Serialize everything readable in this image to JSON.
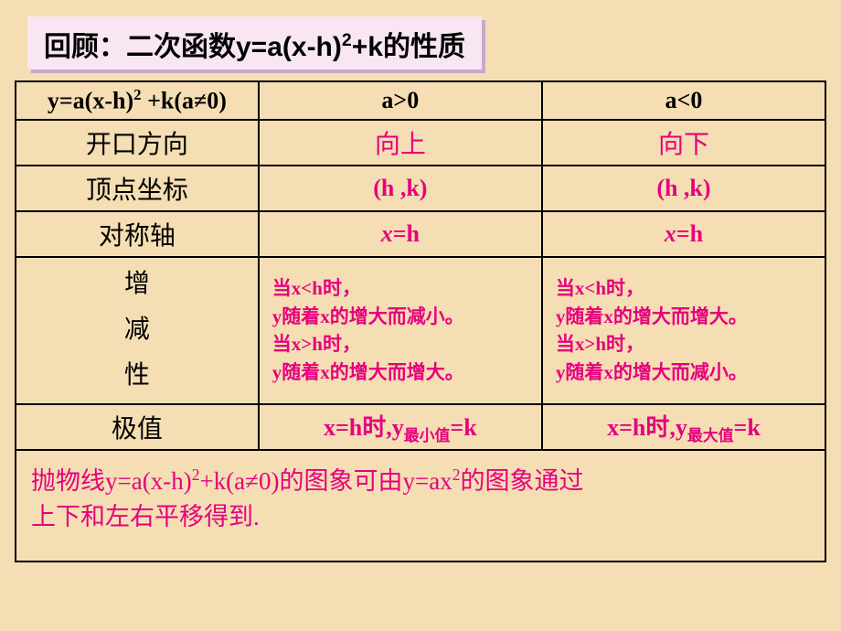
{
  "colors": {
    "slide_bg": "#f5deb3",
    "title_bg": "#f8e6f2",
    "title_shadow": "#c8a8c8",
    "accent": "#e6007e",
    "text": "#000000",
    "border": "#000000"
  },
  "title": {
    "prefix": "回顾：二次函数y=a(x-h)",
    "sup": "2",
    "suffix": "+k的性质"
  },
  "table": {
    "header": {
      "formula_pre": "y=a(x-h)",
      "formula_sup": "2",
      "formula_mid": " +k(a≠0)",
      "col_a_pos": "a>0",
      "col_a_neg": "a<0"
    },
    "rows": {
      "opening": {
        "label": "开口方向",
        "pos": "向上",
        "neg": "向下"
      },
      "vertex": {
        "label": "顶点坐标",
        "pos": "(h ,k)",
        "neg": "(h ,k)"
      },
      "axis": {
        "label": "对称轴"
      },
      "axis_val": {
        "var": "x",
        "eq": "=h"
      },
      "monotone": {
        "label_l1": "增",
        "label_l2": "减",
        "label_l3": "性",
        "pos_l1": "当x<h时，",
        "pos_l2": "y随着x的增大而减小。",
        "pos_l3": "当x>h时，",
        "pos_l4": "y随着x的增大而增大。",
        "neg_l1": "当x<h时，",
        "neg_l2": "y随着x的增大而增大。",
        "neg_l3": "当x>h时，",
        "neg_l4": "y随着x的增大而减小。"
      },
      "extreme": {
        "label": "极值",
        "pos_pre": "x=h时,y",
        "pos_sub": "最小值",
        "pos_post": "=k",
        "neg_pre": "x=h时,y",
        "neg_sub": "最大值",
        "neg_post": "=k"
      }
    },
    "footnote": {
      "l1_pre": "抛物线y=a(x-h)",
      "l1_sup": "2",
      "l1_mid": "+k(a≠0)的图象可由y=ax",
      "l1_sup2": "2",
      "l1_post": "的图象通过",
      "l2": "上下和左右平移得到."
    }
  }
}
